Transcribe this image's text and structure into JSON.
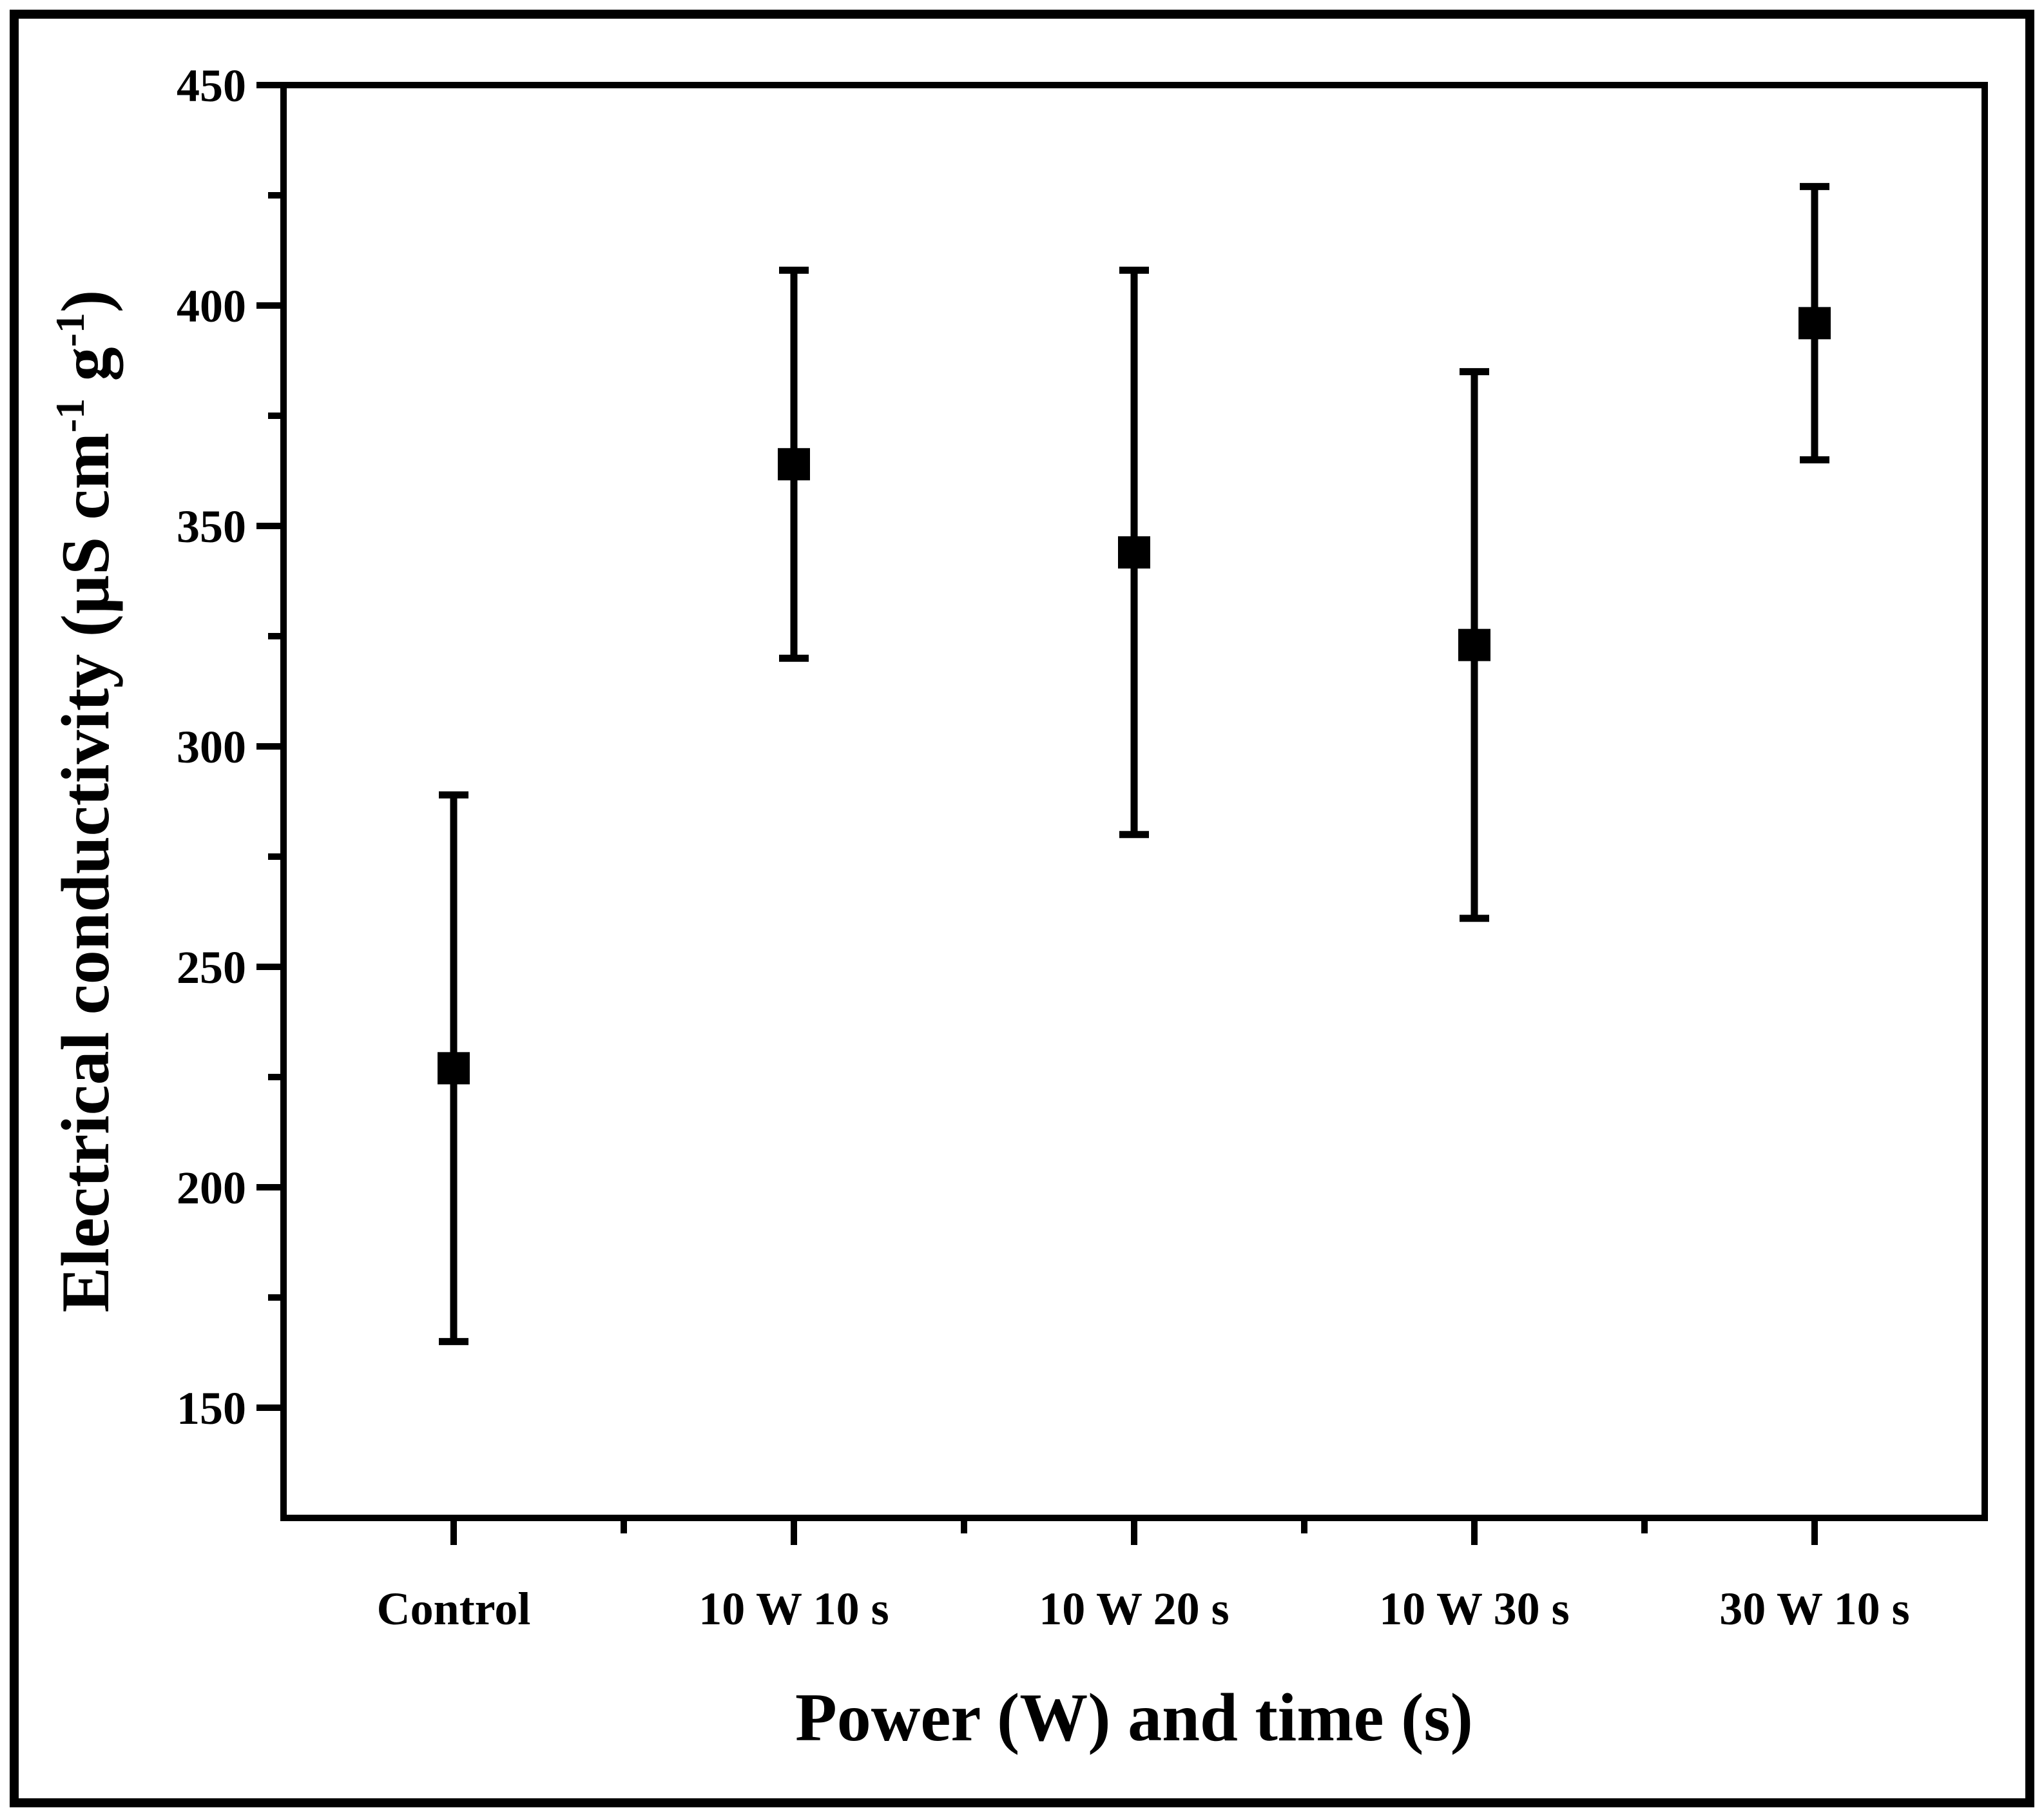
{
  "chart_data": {
    "type": "scatter",
    "title": "",
    "categories": [
      "Control",
      "10 W 10 s",
      "10 W 20 s",
      "10 W 30 s",
      "30 W 10 s"
    ],
    "values": [
      227,
      364,
      344,
      323,
      396
    ],
    "errors": [
      62,
      44,
      64,
      62,
      31
    ],
    "series": [
      {
        "name": "Electrical conductivity",
        "values": [
          227,
          364,
          344,
          323,
          396
        ],
        "errors_plus": [
          62,
          44,
          64,
          62,
          31
        ],
        "errors_minus": [
          62,
          44,
          64,
          62,
          31
        ]
      }
    ],
    "xlabel": "Power (W) and time (s)",
    "ylabel": "Electrical conductivity (µS cm⁻¹ g⁻¹)",
    "ylabel_parts": [
      "Electrical conductivity (µS cm",
      "-1",
      " g",
      "-1",
      ")"
    ],
    "ylim": [
      125,
      450
    ],
    "yticks": [
      150,
      200,
      250,
      300,
      350,
      400,
      450
    ],
    "y_minor_step": 25,
    "x_minor_between_categories": true,
    "marker": "filled-square",
    "marker_color": "#000000",
    "axis_color": "#000000",
    "background": "#ffffff",
    "grid": false,
    "legend": false
  }
}
